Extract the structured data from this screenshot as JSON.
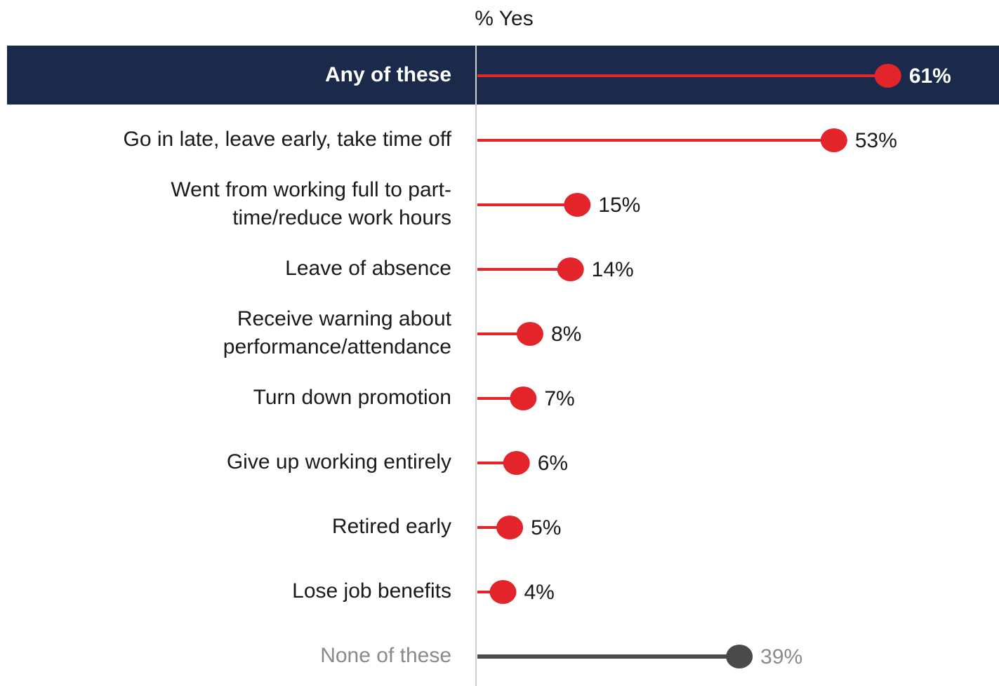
{
  "chart_data": {
    "type": "lollipop",
    "title": "% Yes",
    "categories": [
      "Any of these",
      "Go in late, leave early, take time off",
      "Went from working full to part-\ntime/reduce work hours",
      "Leave of absence",
      "Receive warning about\nperformance/attendance",
      "Turn down promotion",
      "Give up working entirely",
      "Retired early",
      "Lose job benefits",
      "None of these"
    ],
    "values": [
      61,
      53,
      15,
      14,
      8,
      7,
      6,
      5,
      4,
      39
    ],
    "value_labels": [
      "61%",
      "53%",
      "15%",
      "14%",
      "8%",
      "7%",
      "6%",
      "5%",
      "4%",
      "39%"
    ],
    "colors": [
      "#e3242b",
      "#e3242b",
      "#e3242b",
      "#e3242b",
      "#e3242b",
      "#e3242b",
      "#e3242b",
      "#e3242b",
      "#e3242b",
      "#4a4a4a"
    ]
  }
}
